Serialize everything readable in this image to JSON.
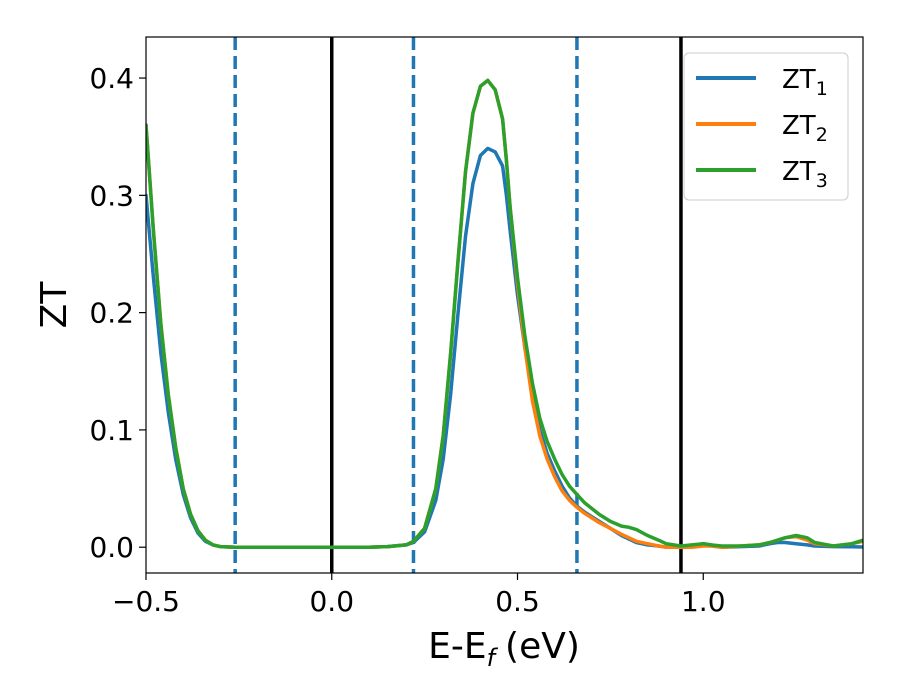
{
  "chart_data": {
    "type": "line",
    "xlabel": "E-E",
    "xlabel_sub": "f",
    "xlabel_unit": "(eV)",
    "ylabel": "ZT",
    "xlim": [
      -0.5,
      1.43
    ],
    "ylim": [
      -0.022,
      0.435
    ],
    "grid": false,
    "legend_position": "top-right",
    "x_ticks": [
      -0.5,
      0.0,
      0.5,
      1.0
    ],
    "x_tick_labels": [
      "−0.5",
      "0.0",
      "0.5",
      "1.0"
    ],
    "y_ticks": [
      0.0,
      0.1,
      0.2,
      0.3,
      0.4
    ],
    "y_tick_labels": [
      "0.0",
      "0.1",
      "0.2",
      "0.3",
      "0.4"
    ],
    "vertical_lines": [
      {
        "x": -0.26,
        "style": "dashed",
        "color": "#1f77b4"
      },
      {
        "x": 0.0,
        "style": "solid",
        "color": "#000000"
      },
      {
        "x": 0.22,
        "style": "dashed",
        "color": "#1f77b4"
      },
      {
        "x": 0.66,
        "style": "dashed",
        "color": "#1f77b4"
      },
      {
        "x": 0.94,
        "style": "solid",
        "color": "#000000"
      }
    ],
    "series": [
      {
        "name": "ZT",
        "name_sub": "1",
        "color": "#1f77b4",
        "x": [
          -0.5,
          -0.48,
          -0.46,
          -0.44,
          -0.42,
          -0.4,
          -0.38,
          -0.36,
          -0.34,
          -0.32,
          -0.3,
          -0.26,
          -0.2,
          -0.1,
          0.0,
          0.1,
          0.15,
          0.2,
          0.22,
          0.25,
          0.28,
          0.3,
          0.32,
          0.34,
          0.36,
          0.38,
          0.4,
          0.42,
          0.44,
          0.46,
          0.47,
          0.48,
          0.5,
          0.52,
          0.54,
          0.56,
          0.58,
          0.6,
          0.62,
          0.64,
          0.66,
          0.68,
          0.7,
          0.72,
          0.75,
          0.78,
          0.8,
          0.82,
          0.85,
          0.88,
          0.9,
          0.94,
          0.97,
          1.0,
          1.02,
          1.05,
          1.1,
          1.15,
          1.18,
          1.2,
          1.22,
          1.25,
          1.28,
          1.3,
          1.35,
          1.4,
          1.43
        ],
        "y": [
          0.3,
          0.23,
          0.165,
          0.115,
          0.075,
          0.045,
          0.025,
          0.012,
          0.005,
          0.002,
          0.0005,
          0.0,
          0.0,
          0.0,
          0.0,
          0.0,
          0.0005,
          0.002,
          0.004,
          0.013,
          0.04,
          0.075,
          0.13,
          0.2,
          0.265,
          0.31,
          0.334,
          0.34,
          0.337,
          0.325,
          0.3,
          0.27,
          0.215,
          0.17,
          0.13,
          0.1,
          0.08,
          0.065,
          0.052,
          0.042,
          0.035,
          0.03,
          0.026,
          0.022,
          0.016,
          0.01,
          0.007,
          0.004,
          0.002,
          0.001,
          0.0,
          0.0,
          0.001,
          0.003,
          0.002,
          0.0,
          0.0005,
          0.001,
          0.003,
          0.004,
          0.004,
          0.003,
          0.002,
          0.001,
          0.0005,
          0.0003,
          0.0002
        ]
      },
      {
        "name": "ZT",
        "name_sub": "2",
        "color": "#ff7f0e",
        "x": [
          -0.5,
          -0.48,
          -0.46,
          -0.44,
          -0.42,
          -0.4,
          -0.38,
          -0.36,
          -0.34,
          -0.32,
          -0.3,
          -0.26,
          -0.2,
          -0.1,
          0.0,
          0.1,
          0.15,
          0.2,
          0.22,
          0.25,
          0.28,
          0.3,
          0.32,
          0.34,
          0.36,
          0.38,
          0.4,
          0.42,
          0.44,
          0.46,
          0.47,
          0.48,
          0.5,
          0.52,
          0.54,
          0.56,
          0.58,
          0.6,
          0.62,
          0.64,
          0.66,
          0.68,
          0.7,
          0.72,
          0.75,
          0.78,
          0.8,
          0.82,
          0.85,
          0.88,
          0.9,
          0.94,
          0.97,
          1.0,
          1.02,
          1.05,
          1.1,
          1.15,
          1.18,
          1.2,
          1.22,
          1.25,
          1.28,
          1.3,
          1.35,
          1.4,
          1.43
        ],
        "y": [
          0.36,
          0.27,
          0.19,
          0.13,
          0.085,
          0.05,
          0.028,
          0.014,
          0.006,
          0.002,
          0.0005,
          0.0,
          0.0,
          0.0,
          0.0,
          0.0,
          0.0005,
          0.002,
          0.005,
          0.016,
          0.05,
          0.095,
          0.165,
          0.245,
          0.32,
          0.37,
          0.393,
          0.398,
          0.39,
          0.365,
          0.33,
          0.29,
          0.225,
          0.17,
          0.125,
          0.095,
          0.075,
          0.06,
          0.048,
          0.04,
          0.034,
          0.029,
          0.025,
          0.021,
          0.016,
          0.011,
          0.008,
          0.005,
          0.003,
          0.001,
          0.0,
          0.0,
          0.0,
          0.001,
          0.001,
          0.0,
          0.001,
          0.002,
          0.004,
          0.006,
          0.008,
          0.009,
          0.006,
          0.003,
          0.001,
          0.003,
          0.005
        ]
      },
      {
        "name": "ZT",
        "name_sub": "3",
        "color": "#2ca02c",
        "x": [
          -0.5,
          -0.48,
          -0.46,
          -0.44,
          -0.42,
          -0.4,
          -0.38,
          -0.36,
          -0.34,
          -0.32,
          -0.3,
          -0.26,
          -0.2,
          -0.1,
          0.0,
          0.1,
          0.15,
          0.2,
          0.22,
          0.25,
          0.28,
          0.3,
          0.32,
          0.34,
          0.36,
          0.38,
          0.4,
          0.42,
          0.44,
          0.46,
          0.47,
          0.48,
          0.5,
          0.52,
          0.54,
          0.56,
          0.58,
          0.6,
          0.62,
          0.64,
          0.66,
          0.68,
          0.7,
          0.72,
          0.75,
          0.78,
          0.8,
          0.82,
          0.85,
          0.88,
          0.9,
          0.94,
          0.97,
          1.0,
          1.02,
          1.05,
          1.1,
          1.15,
          1.18,
          1.2,
          1.22,
          1.25,
          1.28,
          1.3,
          1.35,
          1.4,
          1.43
        ],
        "y": [
          0.36,
          0.27,
          0.19,
          0.13,
          0.085,
          0.05,
          0.028,
          0.014,
          0.006,
          0.002,
          0.0005,
          0.0,
          0.0,
          0.0,
          0.0,
          0.0,
          0.0005,
          0.002,
          0.005,
          0.016,
          0.05,
          0.095,
          0.165,
          0.245,
          0.32,
          0.37,
          0.393,
          0.398,
          0.39,
          0.365,
          0.33,
          0.29,
          0.23,
          0.18,
          0.14,
          0.11,
          0.09,
          0.075,
          0.062,
          0.052,
          0.045,
          0.038,
          0.033,
          0.028,
          0.022,
          0.018,
          0.017,
          0.015,
          0.01,
          0.006,
          0.003,
          0.001,
          0.002,
          0.003,
          0.002,
          0.001,
          0.001,
          0.002,
          0.004,
          0.006,
          0.008,
          0.01,
          0.008,
          0.004,
          0.001,
          0.003,
          0.006
        ]
      }
    ]
  }
}
